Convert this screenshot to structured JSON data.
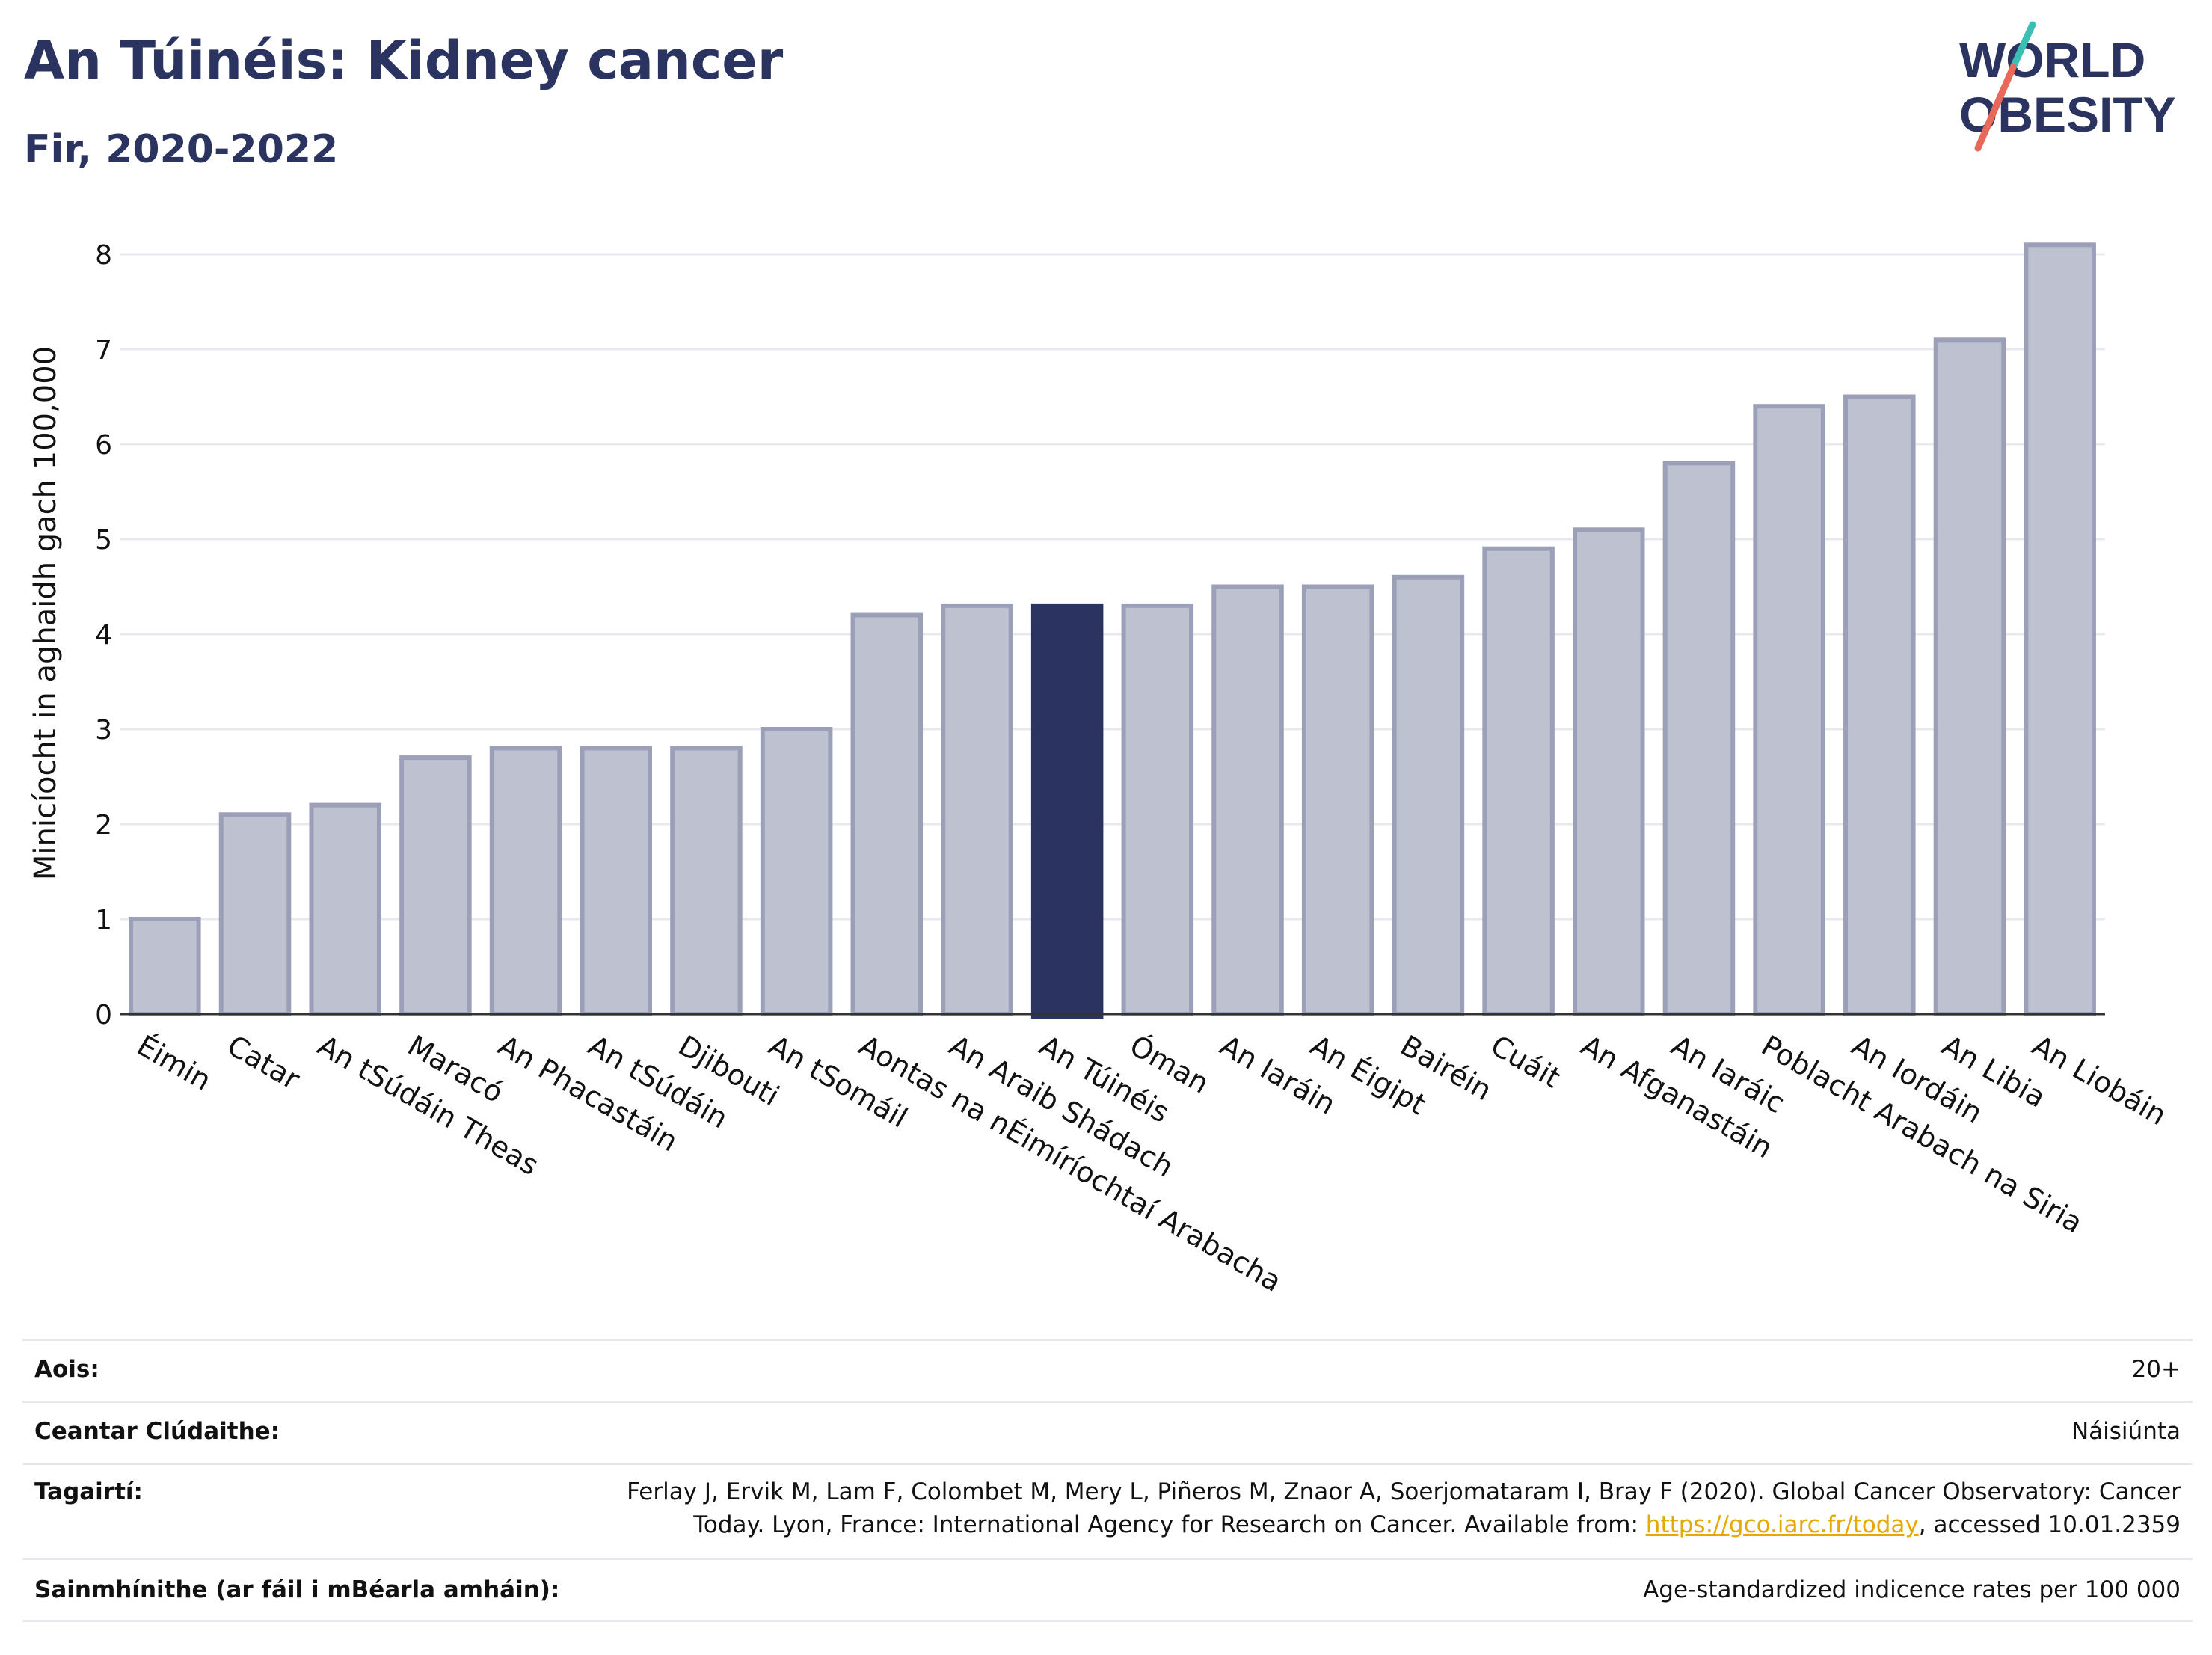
{
  "header": {
    "title": "An Túinéis: Kidney cancer",
    "subtitle": "Fir, 2020-2022"
  },
  "logo": {
    "line1": "WORLD",
    "line2": "OBESITY",
    "accent_teal": "#3bbfb4",
    "accent_red": "#e8685a",
    "text_color": "#2b3461"
  },
  "chart_data": {
    "type": "bar",
    "ylabel": "Minicíocht in aghaidh gach 100,000",
    "ylim": [
      0,
      8.6
    ],
    "yticks": [
      0,
      1,
      2,
      3,
      4,
      5,
      6,
      7,
      8
    ],
    "grid": true,
    "highlight_category": "An Túinéis",
    "colors": {
      "bar": "#bec1cf",
      "bar_edge": "#9ba0b8",
      "highlight": "#2b3461",
      "grid": "#e8e9ee",
      "axis": "#333333"
    },
    "categories": [
      "Éimin",
      "Catar",
      "An tSúdáin Theas",
      "Maracó",
      "An Phacastáin",
      "An tSúdáin",
      "Djibouti",
      "An tSomáil",
      "Aontas na nÉimíríochtaí Arabacha",
      "An Araib Shádach",
      "An Túinéis",
      "Óman",
      "An Iaráin",
      "An Éigipt",
      "Bairéin",
      "Cuáit",
      "An Afganastáin",
      "An Iaráic",
      "Poblacht Arabach na Siria",
      "An Iordáin",
      "An Libia",
      "An Liobáin"
    ],
    "values": [
      1.0,
      2.1,
      2.2,
      2.7,
      2.8,
      2.8,
      2.8,
      3.0,
      4.2,
      4.3,
      4.3,
      4.3,
      4.5,
      4.5,
      4.6,
      4.9,
      5.1,
      5.8,
      6.4,
      6.5,
      7.1,
      8.1
    ]
  },
  "meta": {
    "age_label": "Aois:",
    "age_value": "20+",
    "coverage_label": "Ceantar Clúdaithe:",
    "coverage_value": "Náisiúnta",
    "references_label": "Tagairtí:",
    "references_line1": "Ferlay J, Ervik M, Lam F, Colombet M, Mery L, Piñeros M, Znaor A, Soerjomataram I, Bray F (2020). Global Cancer Observatory: Cancer",
    "references_line2_pre": "Today. Lyon, France: International Agency for Research on Cancer. Available from: ",
    "references_link": "https://gco.iarc.fr/today",
    "references_line2_post": ", accessed 10.01.2359",
    "definitions_label": "Sainmhínithe (ar fáil i mBéarla amháin):",
    "definitions_value": "Age-standardized indicence rates per 100 000"
  }
}
